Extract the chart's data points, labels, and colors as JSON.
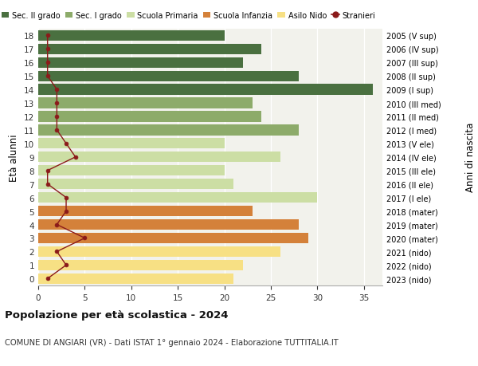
{
  "ages": [
    0,
    1,
    2,
    3,
    4,
    5,
    6,
    7,
    8,
    9,
    10,
    11,
    12,
    13,
    14,
    15,
    16,
    17,
    18
  ],
  "right_labels": [
    "2023 (nido)",
    "2022 (nido)",
    "2021 (nido)",
    "2020 (mater)",
    "2019 (mater)",
    "2018 (mater)",
    "2017 (I ele)",
    "2016 (II ele)",
    "2015 (III ele)",
    "2014 (IV ele)",
    "2013 (V ele)",
    "2012 (I med)",
    "2011 (II med)",
    "2010 (III med)",
    "2009 (I sup)",
    "2008 (II sup)",
    "2007 (III sup)",
    "2006 (IV sup)",
    "2005 (V sup)"
  ],
  "bar_values": [
    21,
    22,
    26,
    29,
    28,
    23,
    30,
    21,
    20,
    26,
    20,
    28,
    24,
    23,
    36,
    28,
    22,
    24,
    20
  ],
  "bar_colors": [
    "#f7e084",
    "#f7e084",
    "#f7e084",
    "#d4813a",
    "#d4813a",
    "#d4813a",
    "#ccdea4",
    "#ccdea4",
    "#ccdea4",
    "#ccdea4",
    "#ccdea4",
    "#8dab6a",
    "#8dab6a",
    "#8dab6a",
    "#4a7040",
    "#4a7040",
    "#4a7040",
    "#4a7040",
    "#4a7040"
  ],
  "stranieri_values": [
    1,
    3,
    2,
    5,
    2,
    3,
    3,
    1,
    1,
    4,
    3,
    2,
    2,
    2,
    2,
    1,
    1,
    1,
    1
  ],
  "stranieri_color": "#8b1a1a",
  "legend_labels": [
    "Sec. II grado",
    "Sec. I grado",
    "Scuola Primaria",
    "Scuola Infanzia",
    "Asilo Nido",
    "Stranieri"
  ],
  "legend_colors": [
    "#4a7040",
    "#8dab6a",
    "#ccdea4",
    "#d4813a",
    "#f7e084",
    "#8b1a1a"
  ],
  "title": "Popolazione per età scolastica - 2024",
  "subtitle": "COMUNE DI ANGIARI (VR) - Dati ISTAT 1° gennaio 2024 - Elaborazione TUTTITALIA.IT",
  "ylabel": "Età alunni",
  "right_ylabel": "Anni di nascita",
  "xlim": [
    0,
    37
  ],
  "xticks": [
    0,
    5,
    10,
    15,
    20,
    25,
    30,
    35
  ],
  "bg_color": "#ffffff",
  "plot_bg_color": "#f2f2ec"
}
